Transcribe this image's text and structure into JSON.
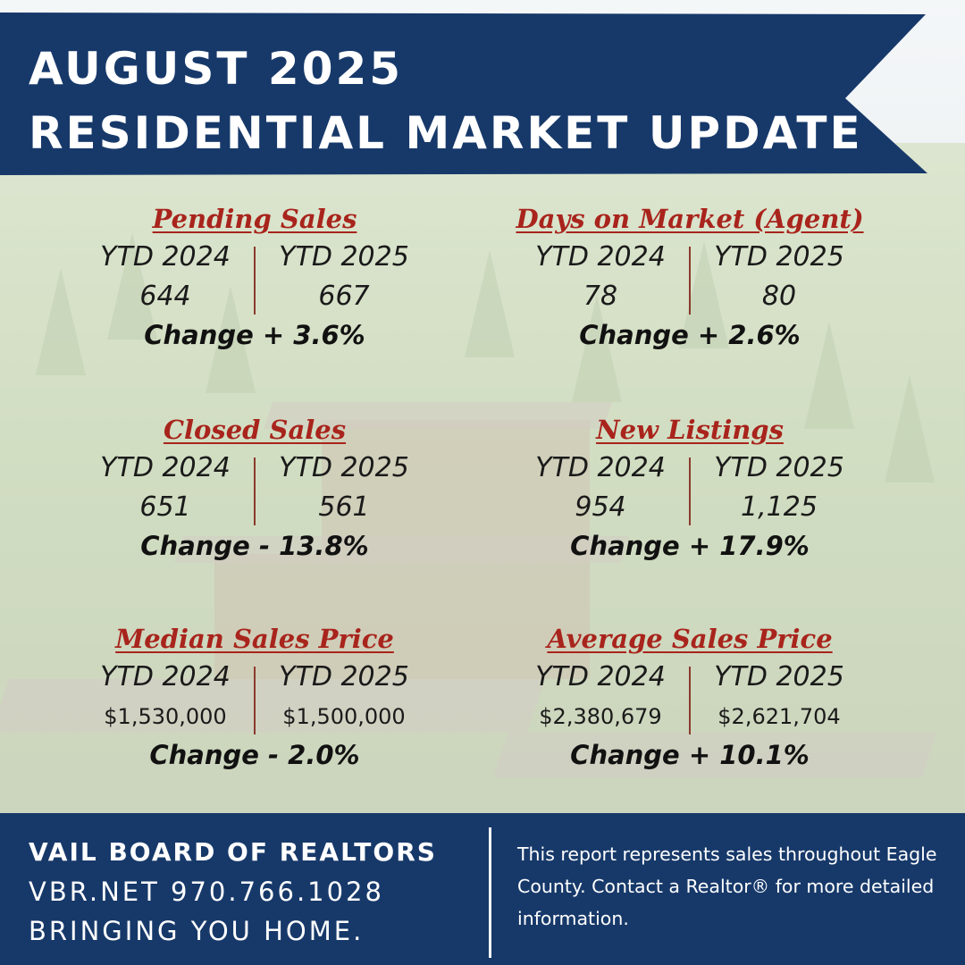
{
  "banner": {
    "line1": "AUGUST 2025",
    "line2": "RESIDENTIAL MARKET UPDATE"
  },
  "colors": {
    "banner_navy": "#17396a",
    "title_red": "#a8241c",
    "divider": "#8a3a2c",
    "footer_navy": "#17396a"
  },
  "stats": [
    {
      "title": "Pending Sales",
      "label_2024": "YTD 2024",
      "label_2025": "YTD 2025",
      "value_2024": "644",
      "value_2025": "667",
      "change": "Change + 3.6%"
    },
    {
      "title": "Days on Market (Agent)",
      "label_2024": "YTD 2024",
      "label_2025": "YTD 2025",
      "value_2024": "78",
      "value_2025": "80",
      "change": "Change + 2.6%"
    },
    {
      "title": "Closed Sales",
      "label_2024": "YTD 2024",
      "label_2025": "YTD 2025",
      "value_2024": "651",
      "value_2025": "561",
      "change": "Change - 13.8%"
    },
    {
      "title": "New Listings",
      "label_2024": "YTD 2024",
      "label_2025": "YTD 2025",
      "value_2024": "954",
      "value_2025": "1,125",
      "change": "Change + 17.9%"
    },
    {
      "title": "Median Sales Price",
      "label_2024": "YTD 2024",
      "label_2025": "YTD 2025",
      "value_2024": "$1,530,000",
      "value_2025": "$1,500,000",
      "change": "Change - 2.0%"
    },
    {
      "title": "Average Sales Price",
      "label_2024": "YTD 2024",
      "label_2025": "YTD 2025",
      "value_2024": "$2,380,679",
      "value_2025": "$2,621,704",
      "change": "Change + 10.1%"
    }
  ],
  "footer": {
    "org": "VAIL BOARD OF REALTORS",
    "contact": "VBR.NET   970.766.1028",
    "tagline": "BRINGING YOU HOME.",
    "note": "This report represents sales throughout Eagle County. Contact a Realtor® for more detailed information."
  }
}
